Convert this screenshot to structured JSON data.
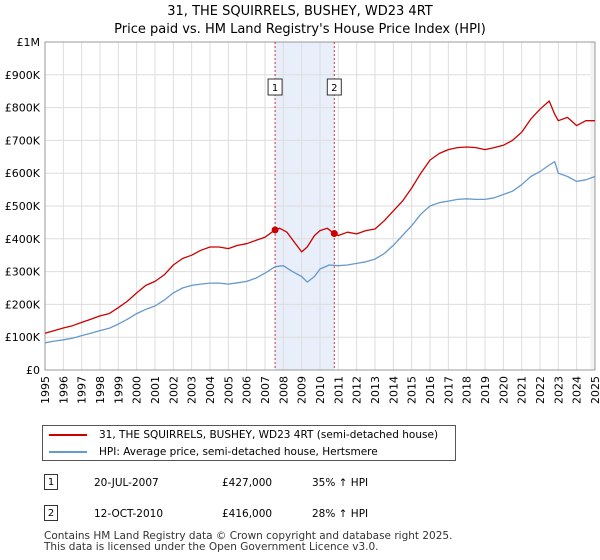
{
  "title_line1": "31, THE SQUIRRELS, BUSHEY, WD23 4RT",
  "title_line2": "Price paid vs. HM Land Registry's House Price Index (HPI)",
  "chart_data": {
    "type": "line",
    "title": "31, THE SQUIRRELS, BUSHEY, WD23 4RT — Price paid vs. HM Land Registry's House Price Index (HPI)",
    "xlabel": "",
    "ylabel": "",
    "xlim": [
      1995,
      2025
    ],
    "ylim": [
      0,
      1000000
    ],
    "y_ticks": [
      0,
      100000,
      200000,
      300000,
      400000,
      500000,
      600000,
      700000,
      800000,
      900000,
      1000000
    ],
    "y_tick_labels": [
      "£0",
      "£100K",
      "£200K",
      "£300K",
      "£400K",
      "£500K",
      "£600K",
      "£700K",
      "£800K",
      "£900K",
      "£1M"
    ],
    "x_ticks": [
      1995,
      1996,
      1997,
      1998,
      1999,
      2000,
      2001,
      2002,
      2003,
      2004,
      2005,
      2006,
      2007,
      2008,
      2009,
      2010,
      2011,
      2012,
      2013,
      2014,
      2015,
      2016,
      2017,
      2018,
      2019,
      2020,
      2021,
      2022,
      2023,
      2024,
      2025
    ],
    "grid": true,
    "shaded_region": [
      2007.55,
      2010.78
    ],
    "series": [
      {
        "name": "31, THE SQUIRRELS, BUSHEY, WD23 4RT (semi-detached house)",
        "color": "#cc0000",
        "x": [
          1995,
          1995.5,
          1996,
          1996.5,
          1997,
          1997.5,
          1998,
          1998.5,
          1999,
          1999.5,
          2000,
          2000.5,
          2001,
          2001.5,
          2002,
          2002.5,
          2003,
          2003.5,
          2004,
          2004.5,
          2005,
          2005.5,
          2006,
          2006.5,
          2007,
          2007.55,
          2007.8,
          2008.2,
          2008.6,
          2009.0,
          2009.3,
          2009.7,
          2010.0,
          2010.4,
          2010.78,
          2011,
          2011.5,
          2012,
          2012.5,
          2013,
          2013.5,
          2014,
          2014.5,
          2015,
          2015.5,
          2016,
          2016.5,
          2017,
          2017.5,
          2018,
          2018.5,
          2019,
          2019.5,
          2020,
          2020.5,
          2021,
          2021.5,
          2022,
          2022.5,
          2022.8,
          2023,
          2023.5,
          2024,
          2024.5,
          2025
        ],
        "y": [
          112000,
          120000,
          128000,
          135000,
          145000,
          155000,
          165000,
          172000,
          190000,
          210000,
          235000,
          258000,
          270000,
          290000,
          320000,
          340000,
          350000,
          365000,
          375000,
          375000,
          370000,
          380000,
          385000,
          395000,
          405000,
          427000,
          432000,
          420000,
          390000,
          360000,
          375000,
          410000,
          425000,
          432000,
          416000,
          410000,
          420000,
          415000,
          425000,
          430000,
          455000,
          485000,
          515000,
          555000,
          600000,
          640000,
          660000,
          672000,
          678000,
          680000,
          678000,
          672000,
          678000,
          685000,
          700000,
          725000,
          765000,
          795000,
          820000,
          780000,
          760000,
          770000,
          745000,
          760000,
          760000
        ]
      },
      {
        "name": "HPI: Average price, semi-detached house, Hertsmere",
        "color": "#6699cc",
        "x": [
          1995,
          1995.5,
          1996,
          1996.5,
          1997,
          1997.5,
          1998,
          1998.5,
          1999,
          1999.5,
          2000,
          2000.5,
          2001,
          2001.5,
          2002,
          2002.5,
          2003,
          2003.5,
          2004,
          2004.5,
          2005,
          2005.5,
          2006,
          2006.5,
          2007,
          2007.55,
          2008,
          2008.5,
          2009,
          2009.3,
          2009.7,
          2010,
          2010.5,
          2011,
          2011.5,
          2012,
          2012.5,
          2013,
          2013.5,
          2014,
          2014.5,
          2015,
          2015.5,
          2016,
          2016.5,
          2017,
          2017.5,
          2018,
          2018.5,
          2019,
          2019.5,
          2020,
          2020.5,
          2021,
          2021.5,
          2022,
          2022.5,
          2022.8,
          2023,
          2023.5,
          2024,
          2024.5,
          2025
        ],
        "y": [
          83000,
          88000,
          92000,
          97000,
          105000,
          112000,
          120000,
          127000,
          140000,
          155000,
          172000,
          185000,
          195000,
          213000,
          235000,
          250000,
          258000,
          262000,
          265000,
          265000,
          262000,
          266000,
          270000,
          280000,
          295000,
          315000,
          318000,
          300000,
          285000,
          268000,
          285000,
          308000,
          320000,
          318000,
          320000,
          325000,
          330000,
          338000,
          355000,
          380000,
          410000,
          440000,
          475000,
          500000,
          510000,
          515000,
          520000,
          522000,
          520000,
          520000,
          525000,
          535000,
          545000,
          565000,
          590000,
          605000,
          625000,
          635000,
          600000,
          590000,
          575000,
          580000,
          590000
        ]
      }
    ],
    "sale_markers": [
      {
        "label": "1",
        "x": 2007.55,
        "y": 427000
      },
      {
        "label": "2",
        "x": 2010.78,
        "y": 416000
      }
    ],
    "legend_position": "below"
  },
  "legend": {
    "series1": "31, THE SQUIRRELS, BUSHEY, WD23 4RT (semi-detached house)",
    "series2": "HPI: Average price, semi-detached house, Hertsmere"
  },
  "sales": [
    {
      "num": "1",
      "date": "20-JUL-2007",
      "price": "£427,000",
      "hpi": "35% ↑ HPI"
    },
    {
      "num": "2",
      "date": "12-OCT-2010",
      "price": "£416,000",
      "hpi": "28% ↑ HPI"
    }
  ],
  "footer_line1": "Contains HM Land Registry data © Crown copyright and database right 2025.",
  "footer_line2": "This data is licensed under the Open Government Licence v3.0."
}
